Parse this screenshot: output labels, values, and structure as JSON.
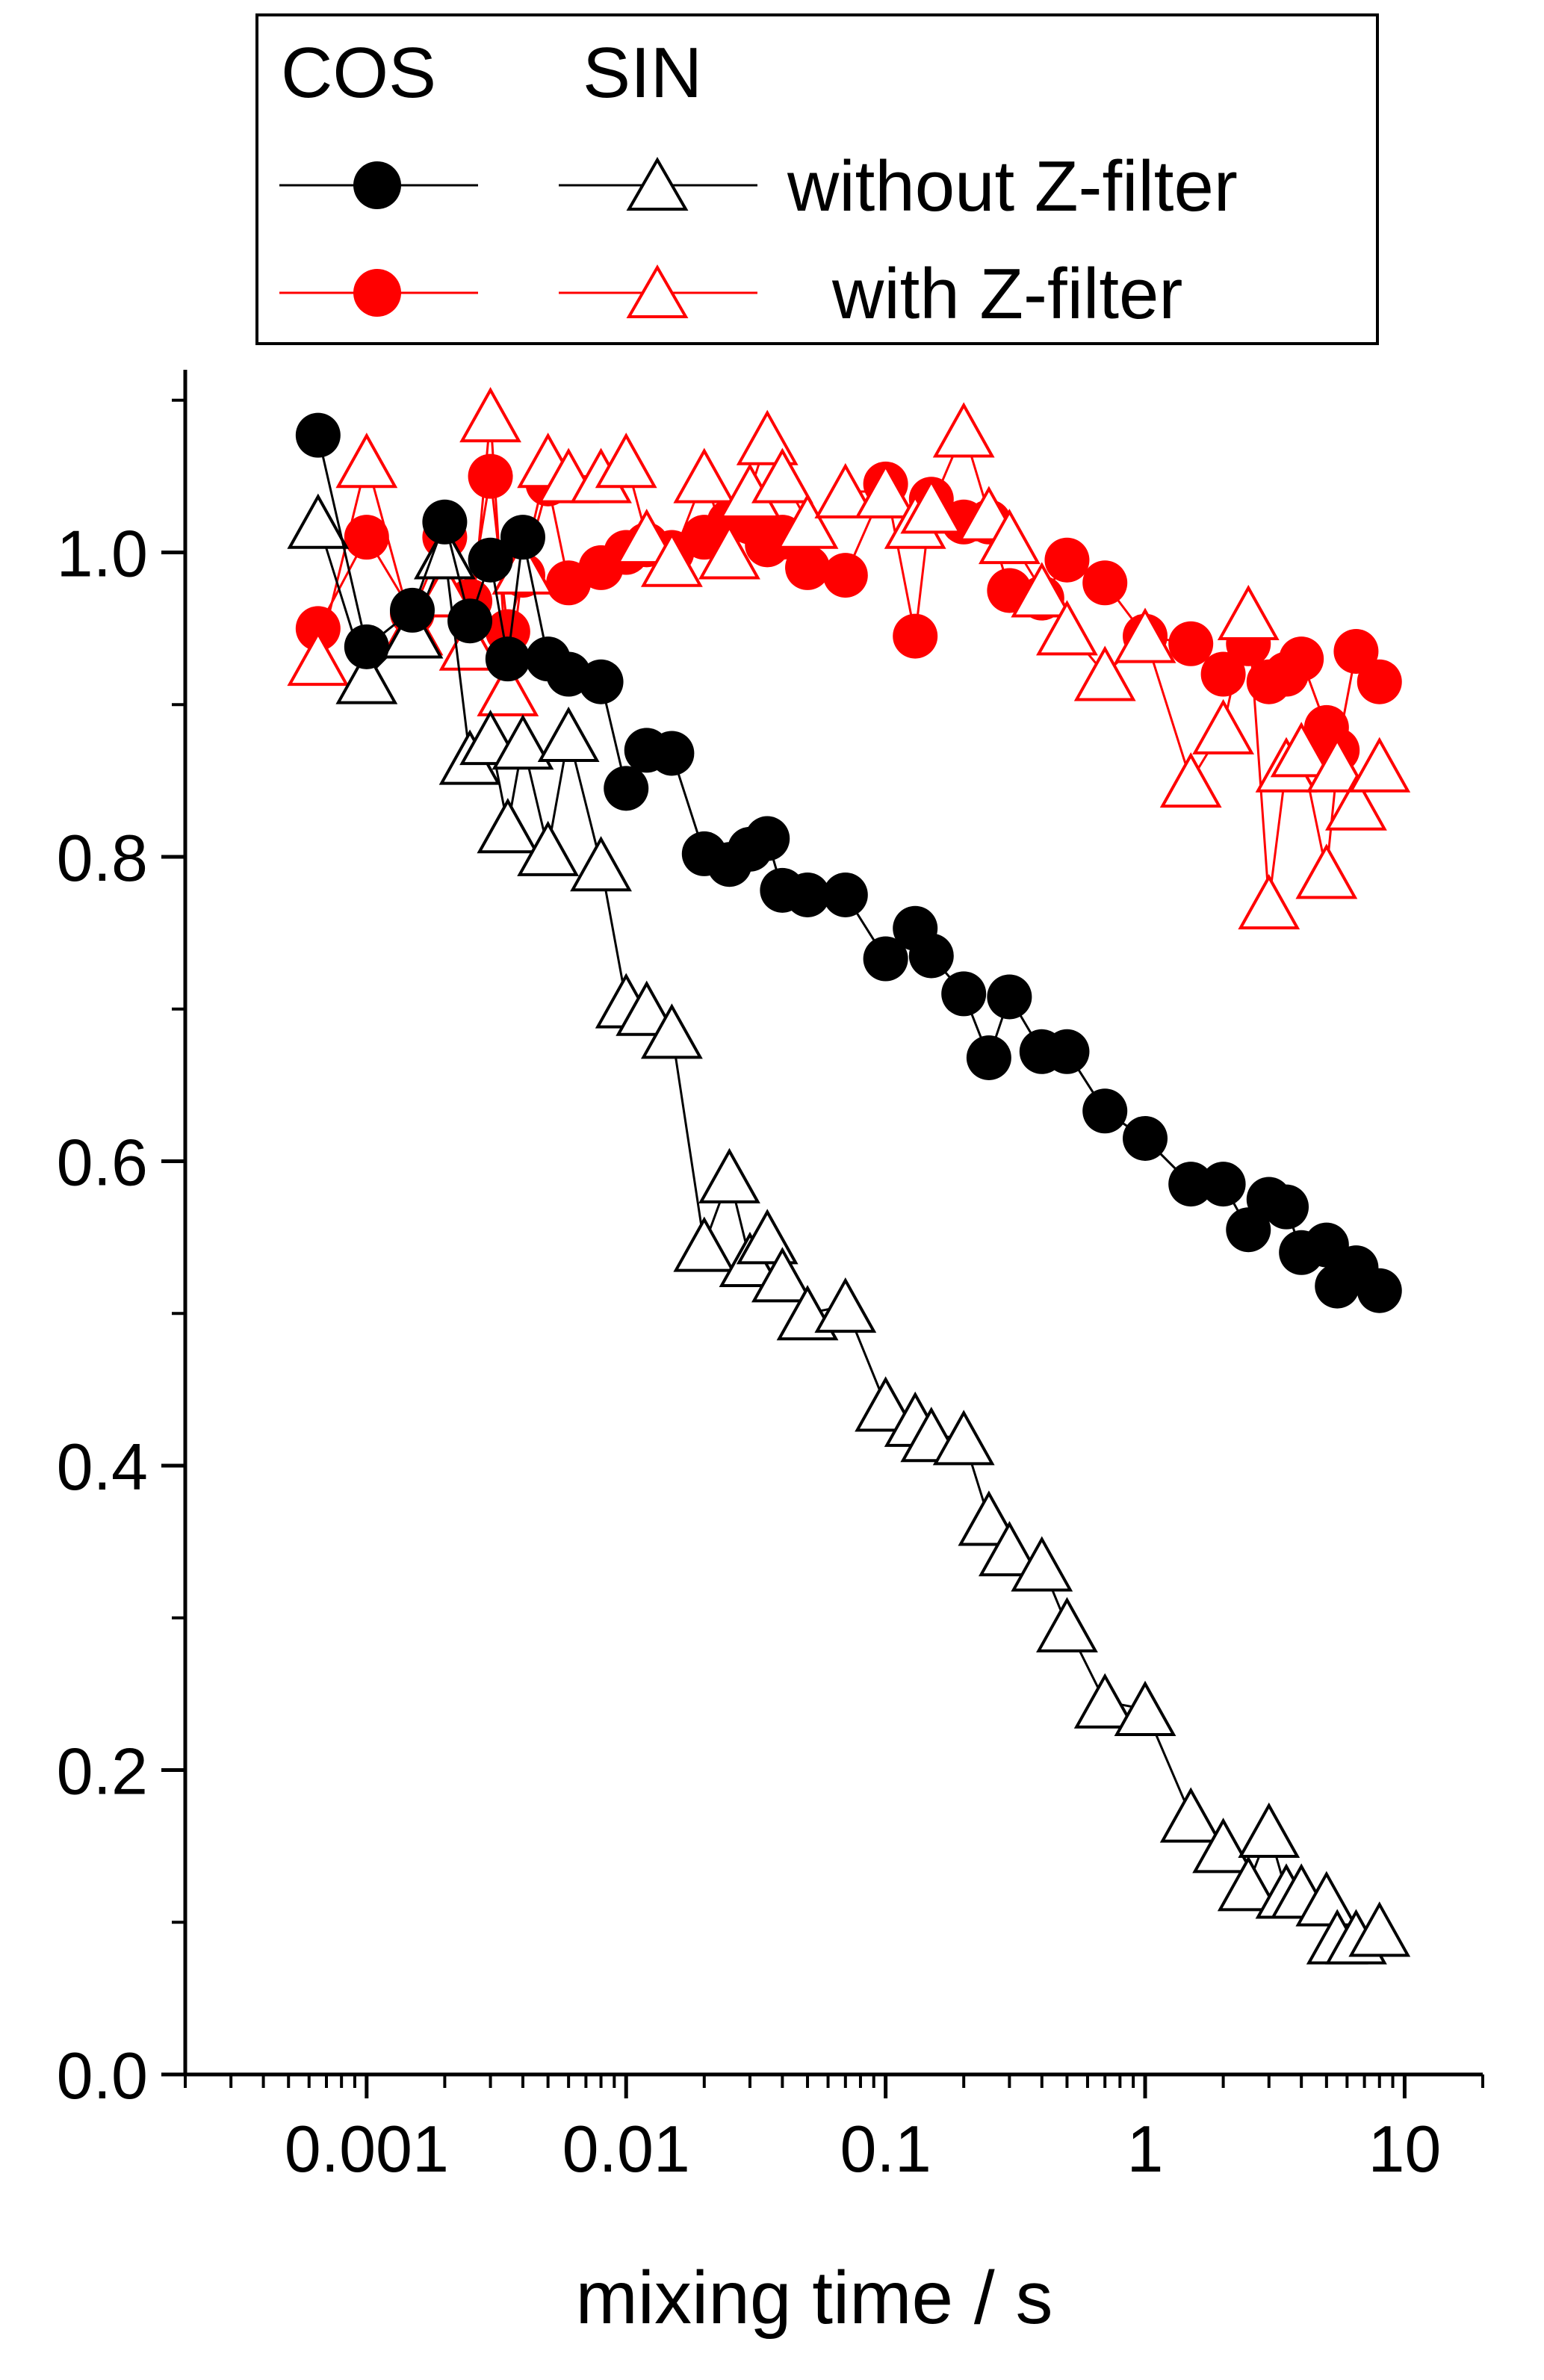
{
  "chart_data": {
    "type": "scatter",
    "title": "",
    "xlabel": "mixing time / s",
    "ylabel": "",
    "x_scale": "log",
    "xlim": [
      0.0002,
      20
    ],
    "ylim": [
      0,
      1.12
    ],
    "x_ticks": [
      {
        "value": 0.001,
        "label": "0.001"
      },
      {
        "value": 0.01,
        "label": "0.01"
      },
      {
        "value": 0.1,
        "label": "0.1"
      },
      {
        "value": 1,
        "label": "1"
      },
      {
        "value": 10,
        "label": "10"
      }
    ],
    "y_ticks": [
      {
        "value": 0,
        "label": "0.0"
      },
      {
        "value": 0.2,
        "label": "0.2"
      },
      {
        "value": 0.4,
        "label": "0.4"
      },
      {
        "value": 0.6,
        "label": "0.6"
      },
      {
        "value": 0.8,
        "label": "0.8"
      },
      {
        "value": 1.0,
        "label": "1.0"
      }
    ],
    "grid": false,
    "legend": {
      "placement": "top",
      "column_headers": [
        "COS",
        "SIN"
      ],
      "row_labels": [
        "without Z-filter",
        "with Z-filter"
      ]
    },
    "colors": {
      "without": "#000000",
      "with": "#ff0000"
    },
    "x": [
      0.00065,
      0.001,
      0.0015,
      0.002,
      0.0025,
      0.003,
      0.0035,
      0.004,
      0.005,
      0.006,
      0.008,
      0.01,
      0.012,
      0.015,
      0.02,
      0.025,
      0.03,
      0.035,
      0.04,
      0.05,
      0.07,
      0.1,
      0.13,
      0.15,
      0.2,
      0.25,
      0.3,
      0.4,
      0.5,
      0.7,
      1.0,
      1.5,
      2.0,
      2.5,
      3.0,
      3.5,
      4.0,
      5.0,
      5.5,
      6.5,
      8.0
    ],
    "series": [
      {
        "legend_column": "COS",
        "legend_row": "without Z-filter",
        "marker": "circle",
        "filled": true,
        "color": "#000000",
        "values": [
          1.077,
          0.938,
          0.962,
          1.02,
          0.955,
          0.995,
          0.93,
          1.01,
          0.93,
          0.92,
          0.915,
          0.845,
          0.87,
          0.868,
          0.802,
          0.795,
          0.805,
          0.812,
          0.778,
          0.775,
          0.775,
          0.733,
          0.753,
          0.735,
          0.71,
          0.668,
          0.708,
          0.672,
          0.672,
          0.633,
          0.615,
          0.585,
          0.585,
          0.555,
          0.575,
          0.57,
          0.54,
          0.545,
          0.518,
          0.53,
          0.515
        ]
      },
      {
        "legend_column": "SIN",
        "legend_row": "without Z-filter",
        "marker": "triangle",
        "filled": false,
        "color": "#000000",
        "values": [
          1.02,
          0.918,
          0.948,
          1.0,
          0.865,
          0.878,
          0.82,
          0.875,
          0.805,
          0.88,
          0.795,
          0.705,
          0.7,
          0.685,
          0.545,
          0.59,
          0.535,
          0.55,
          0.525,
          0.5,
          0.505,
          0.44,
          0.43,
          0.42,
          0.418,
          0.365,
          0.345,
          0.335,
          0.295,
          0.245,
          0.24,
          0.17,
          0.15,
          0.125,
          0.16,
          0.12,
          0.12,
          0.115,
          0.09,
          0.09,
          0.095
        ]
      },
      {
        "legend_column": "COS",
        "legend_row": "with Z-filter",
        "marker": "circle",
        "filled": true,
        "color": "#ff0000",
        "values": [
          0.95,
          1.01,
          0.96,
          1.01,
          0.968,
          1.05,
          0.948,
          0.985,
          1.045,
          0.98,
          0.99,
          1.0,
          1.005,
          1.0,
          1.01,
          1.02,
          1.02,
          1.005,
          1.01,
          0.99,
          0.985,
          1.045,
          0.945,
          1.035,
          1.02,
          1.02,
          0.975,
          0.97,
          0.995,
          0.98,
          0.945,
          0.94,
          0.92,
          0.94,
          0.915,
          0.92,
          0.93,
          0.885,
          0.87,
          0.935,
          0.915
        ]
      },
      {
        "legend_column": "SIN",
        "legend_row": "with Z-filter",
        "marker": "triangle",
        "filled": false,
        "color": "#ff0000",
        "values": [
          0.93,
          1.06,
          0.95,
          0.975,
          0.94,
          1.09,
          0.91,
          0.99,
          1.06,
          1.05,
          1.05,
          1.06,
          1.01,
          0.995,
          1.05,
          1.0,
          1.04,
          1.075,
          1.05,
          1.02,
          1.04,
          1.04,
          1.02,
          1.03,
          1.08,
          1.025,
          1.01,
          0.975,
          0.95,
          0.92,
          0.945,
          0.85,
          0.885,
          0.96,
          0.77,
          0.86,
          0.87,
          0.79,
          0.86,
          0.835,
          0.86
        ]
      }
    ]
  }
}
